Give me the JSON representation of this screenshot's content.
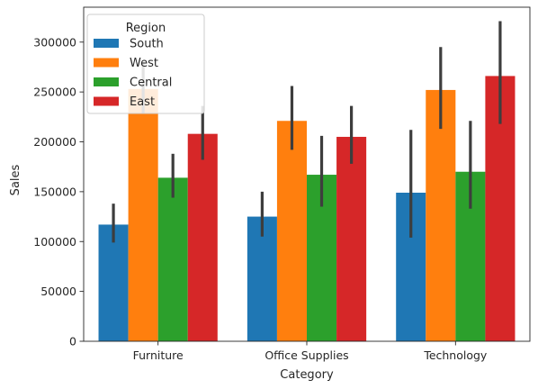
{
  "chart_data": {
    "type": "bar",
    "xlabel": "Category",
    "ylabel": "Sales",
    "categories": [
      "Furniture",
      "Office Supplies",
      "Technology"
    ],
    "ylim": [
      0,
      335000
    ],
    "yticks": [
      0,
      50000,
      100000,
      150000,
      200000,
      250000,
      300000
    ],
    "ytick_labels": [
      "0",
      "50000",
      "100000",
      "150000",
      "200000",
      "250000",
      "300000"
    ],
    "grid": false,
    "legend": {
      "title": "Region",
      "placement": "top-left"
    },
    "series": [
      {
        "name": "South",
        "color": "#1f77b4",
        "values": [
          117000,
          125000,
          149000
        ],
        "error_low": [
          99000,
          105000,
          104000
        ],
        "error_high": [
          138000,
          150000,
          212000
        ]
      },
      {
        "name": "West",
        "color": "#ff7f0e",
        "values": [
          253000,
          221000,
          252000
        ],
        "error_low": [
          229000,
          192000,
          213000
        ],
        "error_high": [
          280000,
          256000,
          295000
        ]
      },
      {
        "name": "Central",
        "color": "#2ca02c",
        "values": [
          164000,
          167000,
          170000
        ],
        "error_low": [
          144000,
          135000,
          133000
        ],
        "error_high": [
          188000,
          206000,
          221000
        ]
      },
      {
        "name": "East",
        "color": "#d62728",
        "values": [
          208000,
          205000,
          266000
        ],
        "error_low": [
          182000,
          178000,
          218000
        ],
        "error_high": [
          236000,
          236000,
          321000
        ]
      }
    ]
  }
}
